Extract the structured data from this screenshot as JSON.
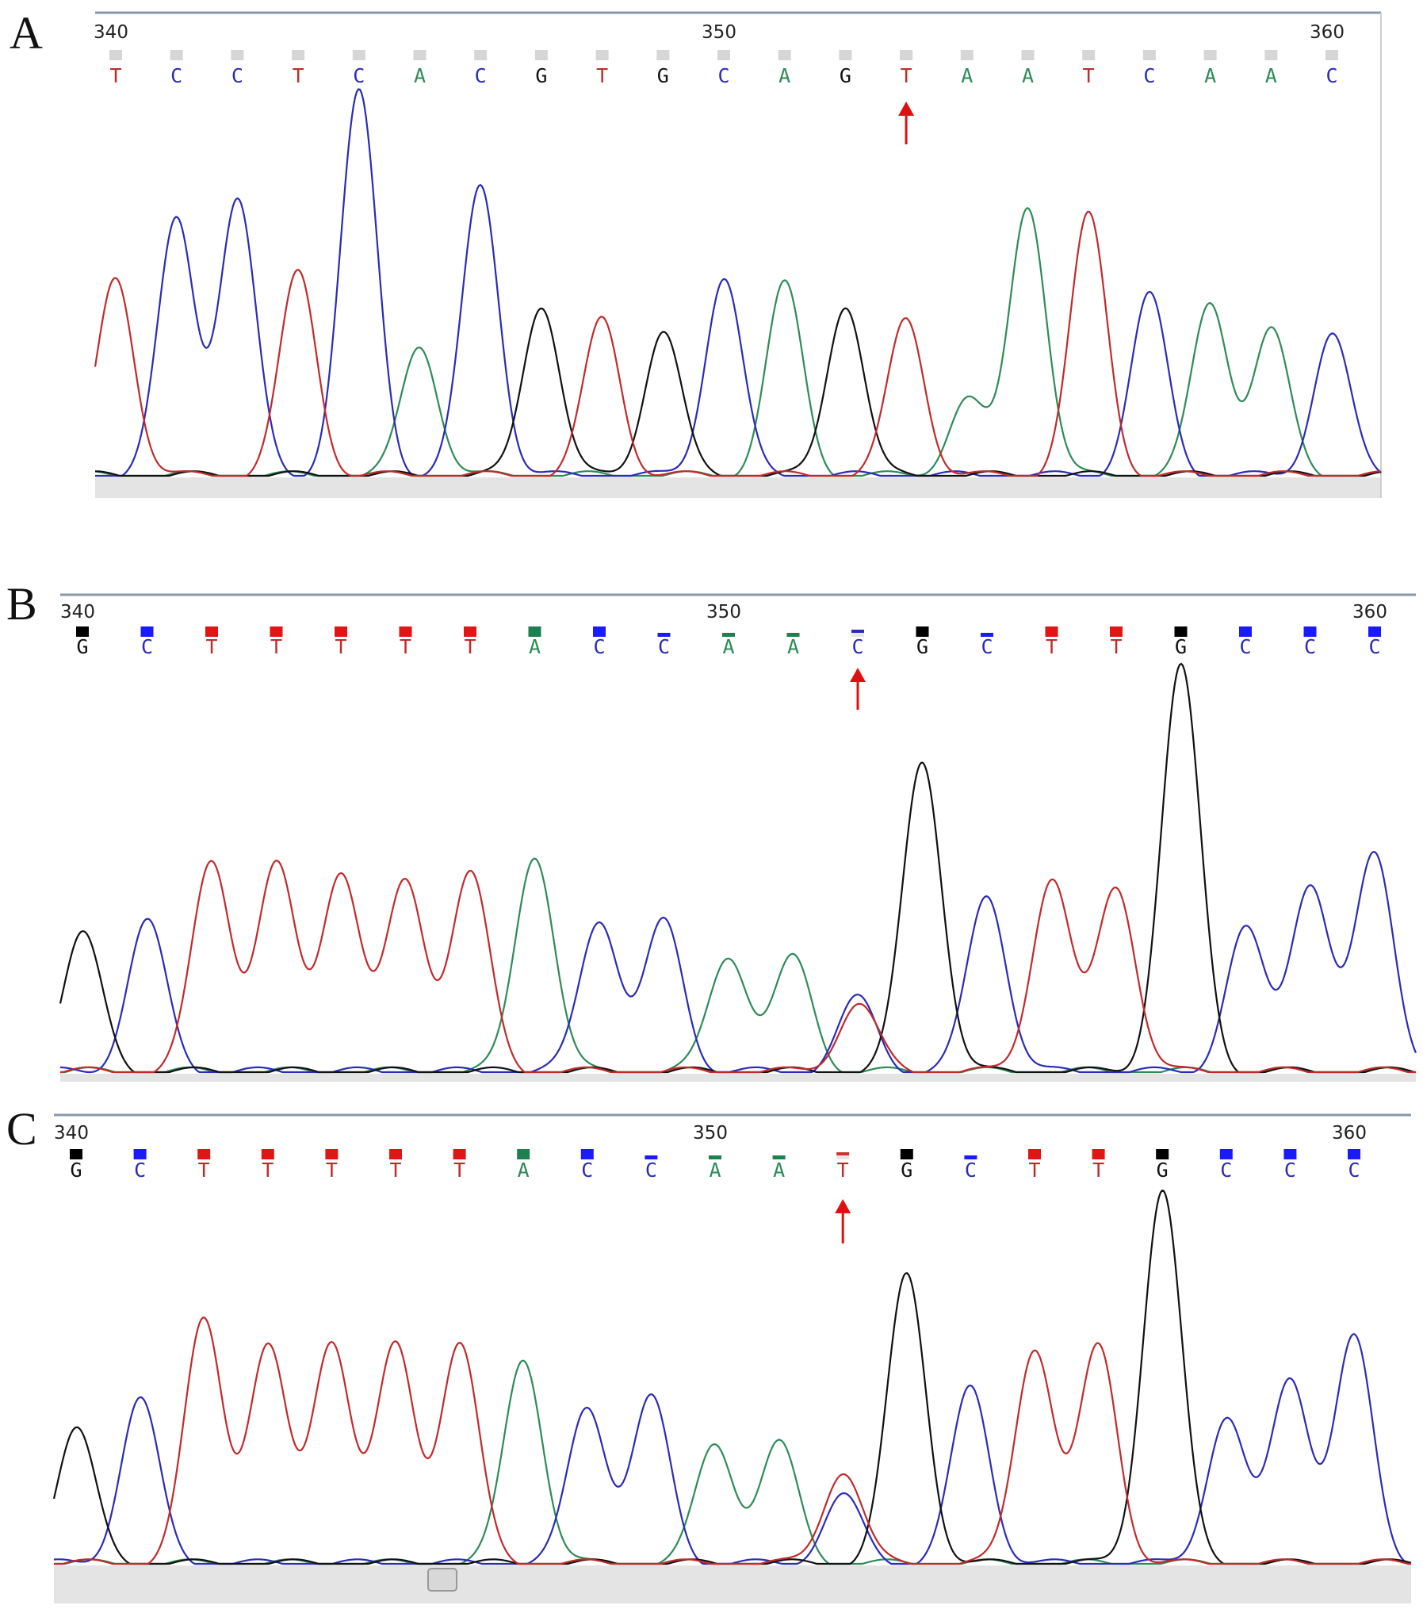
{
  "panels": [
    {
      "letter": "A",
      "position_ticks": [
        340,
        350,
        360
      ],
      "bases": [
        "T",
        "C",
        "C",
        "T",
        "C",
        "A",
        "C",
        "G",
        "T",
        "G",
        "C",
        "A",
        "G",
        "T",
        "A",
        "A",
        "T",
        "C",
        "A",
        "A",
        "C"
      ],
      "peak_heights": [
        0.52,
        0.67,
        0.72,
        0.53,
        1.0,
        0.34,
        0.76,
        0.45,
        0.41,
        0.38,
        0.52,
        0.5,
        0.45,
        0.41,
        0.2,
        0.71,
        0.68,
        0.47,
        0.45,
        0.38,
        0.37
      ],
      "mutation_index": 13,
      "tag_style": "gray"
    },
    {
      "letter": "B",
      "position_ticks": [
        340,
        350,
        360
      ],
      "bases": [
        "G",
        "C",
        "T",
        "T",
        "T",
        "T",
        "T",
        "A",
        "C",
        "C",
        "A",
        "A",
        "C",
        "G",
        "C",
        "T",
        "T",
        "G",
        "C",
        "C",
        "C"
      ],
      "peak_heights": [
        0.34,
        0.37,
        0.52,
        0.51,
        0.5,
        0.47,
        0.49,
        0.54,
        0.38,
        0.37,
        0.29,
        0.28,
        0.18,
        0.77,
        0.44,
        0.48,
        0.46,
        1.0,
        0.35,
        0.47,
        0.54
      ],
      "mutation_index": 12,
      "tag_style": "color"
    },
    {
      "letter": "C",
      "position_ticks": [
        340,
        350,
        360
      ],
      "bases": [
        "G",
        "C",
        "T",
        "T",
        "T",
        "T",
        "T",
        "A",
        "C",
        "C",
        "A",
        "A",
        "T",
        "G",
        "C",
        "T",
        "T",
        "G",
        "C",
        "C",
        "C"
      ],
      "peak_heights": [
        0.36,
        0.44,
        0.65,
        0.58,
        0.6,
        0.58,
        0.59,
        0.55,
        0.42,
        0.44,
        0.32,
        0.32,
        0.25,
        0.77,
        0.47,
        0.58,
        0.58,
        1.0,
        0.39,
        0.5,
        0.6
      ],
      "mutation_index": 12,
      "tag_style": "color"
    }
  ],
  "colors": {
    "A": "#2e8b57",
    "C": "#2b2bb8",
    "G": "#111111",
    "T": "#c22a2a",
    "arrow": "#e01010"
  }
}
